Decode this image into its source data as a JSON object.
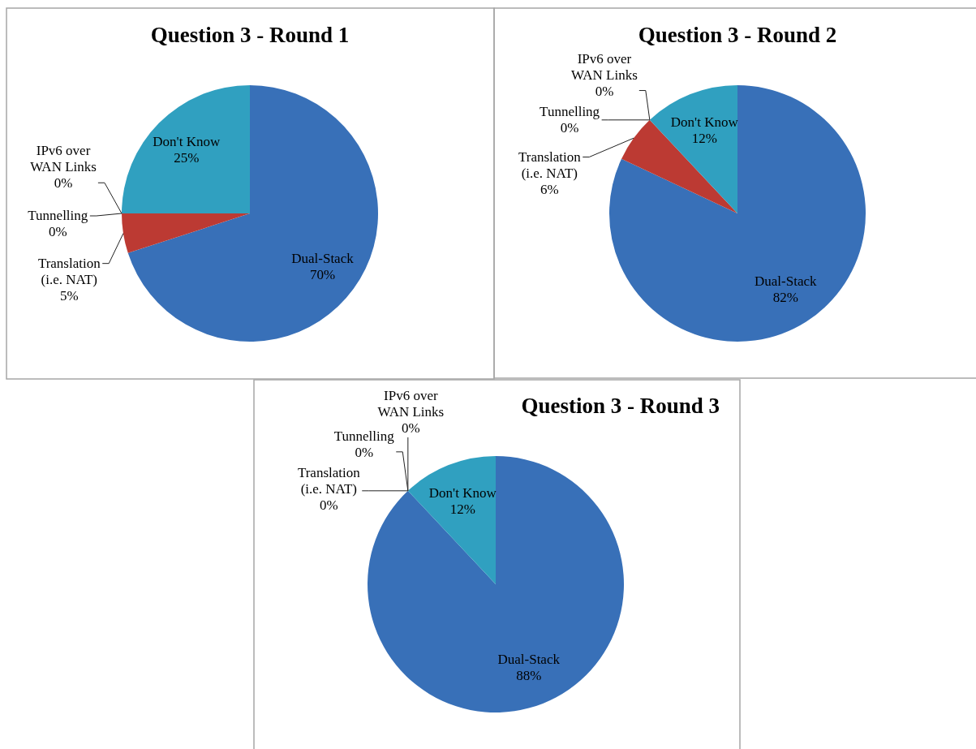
{
  "chart_data": [
    {
      "type": "pie",
      "title": "Question 3 - Round 1",
      "categories": [
        "Dual-Stack",
        "Translation (i.e. NAT)",
        "Tunnelling",
        "IPv6 over WAN Links",
        "Don't Know"
      ],
      "values": [
        70,
        5,
        0,
        0,
        25
      ],
      "value_labels": [
        "70%",
        "5%",
        "0%",
        "0%",
        "25%"
      ],
      "colors": [
        "#3870b8",
        "#bc3a33",
        null,
        null,
        "#30a0c0"
      ]
    },
    {
      "type": "pie",
      "title": "Question 3 - Round 2",
      "categories": [
        "Dual-Stack",
        "Translation (i.e. NAT)",
        "Tunnelling",
        "IPv6 over WAN Links",
        "Don't Know"
      ],
      "values": [
        82,
        6,
        0,
        0,
        12
      ],
      "value_labels": [
        "82%",
        "6%",
        "0%",
        "0%",
        "12%"
      ],
      "colors": [
        "#3870b8",
        "#bc3a33",
        null,
        null,
        "#30a0c0"
      ]
    },
    {
      "type": "pie",
      "title": "Question 3 - Round 3",
      "categories": [
        "Dual-Stack",
        "Translation (i.e. NAT)",
        "Tunnelling",
        "IPv6 over WAN Links",
        "Don't Know"
      ],
      "values": [
        88,
        0,
        0,
        0,
        12
      ],
      "value_labels": [
        "88%",
        "0%",
        "0%",
        "0%",
        "12%"
      ],
      "colors": [
        "#3870b8",
        null,
        null,
        null,
        "#30a0c0"
      ]
    }
  ]
}
